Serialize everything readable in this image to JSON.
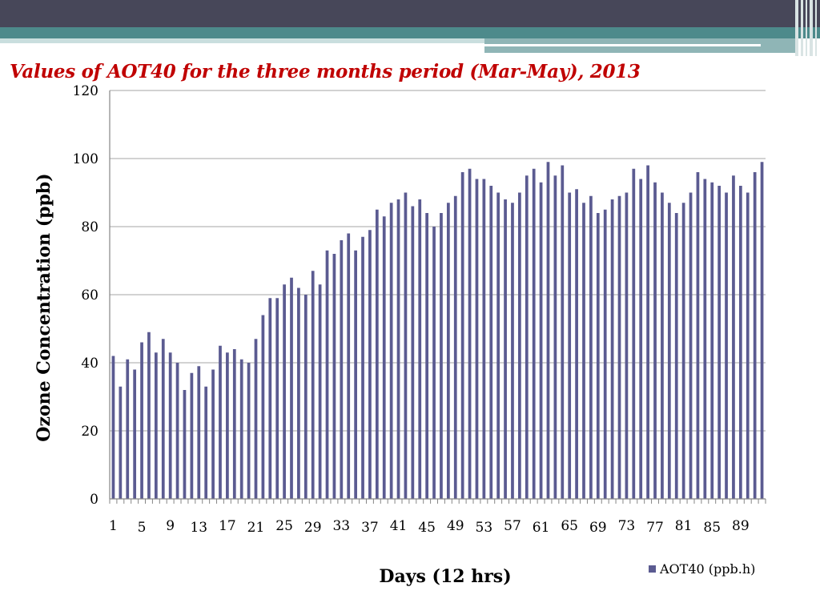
{
  "slide": {
    "title": "Values of AOT40 for the three months period (Mar-May), 2013"
  },
  "colors": {
    "header_dark": "#474759",
    "header_teal": "#4d8a8b",
    "bar": "#5b5b91",
    "title": "#c00000",
    "grid": "#a6a6a6"
  },
  "chart_data": {
    "type": "bar",
    "title": "",
    "xlabel": "Days (12 hrs)",
    "ylabel": "Ozone Concentration (ppb)",
    "ylim": [
      0,
      120
    ],
    "yticks": [
      0,
      20,
      40,
      60,
      80,
      100,
      120
    ],
    "xtick_labels": [
      "1",
      "5",
      "9",
      "13",
      "17",
      "21",
      "25",
      "29",
      "33",
      "37",
      "41",
      "45",
      "49",
      "53",
      "57",
      "61",
      "65",
      "69",
      "73",
      "77",
      "81",
      "85",
      "89"
    ],
    "grid": true,
    "legend_position": "bottom-right",
    "series": [
      {
        "name": "AOT40 (ppb.h)",
        "color": "#5b5b91",
        "values": [
          42,
          33,
          41,
          38,
          46,
          49,
          43,
          47,
          43,
          40,
          32,
          37,
          39,
          33,
          38,
          45,
          43,
          44,
          41,
          40,
          47,
          54,
          59,
          59,
          63,
          65,
          62,
          60,
          67,
          63,
          73,
          72,
          76,
          78,
          73,
          77,
          79,
          85,
          83,
          87,
          88,
          90,
          86,
          88,
          84,
          80,
          84,
          87,
          89,
          96,
          97,
          94,
          94,
          92,
          90,
          88,
          87,
          90,
          95,
          97,
          93,
          99,
          95,
          98,
          90,
          91,
          87,
          89,
          84,
          85,
          88,
          89,
          90,
          97,
          94,
          98,
          93,
          90,
          87,
          84,
          87,
          90,
          96,
          94,
          93,
          92,
          90,
          95,
          92,
          90,
          96,
          99
        ]
      }
    ]
  }
}
